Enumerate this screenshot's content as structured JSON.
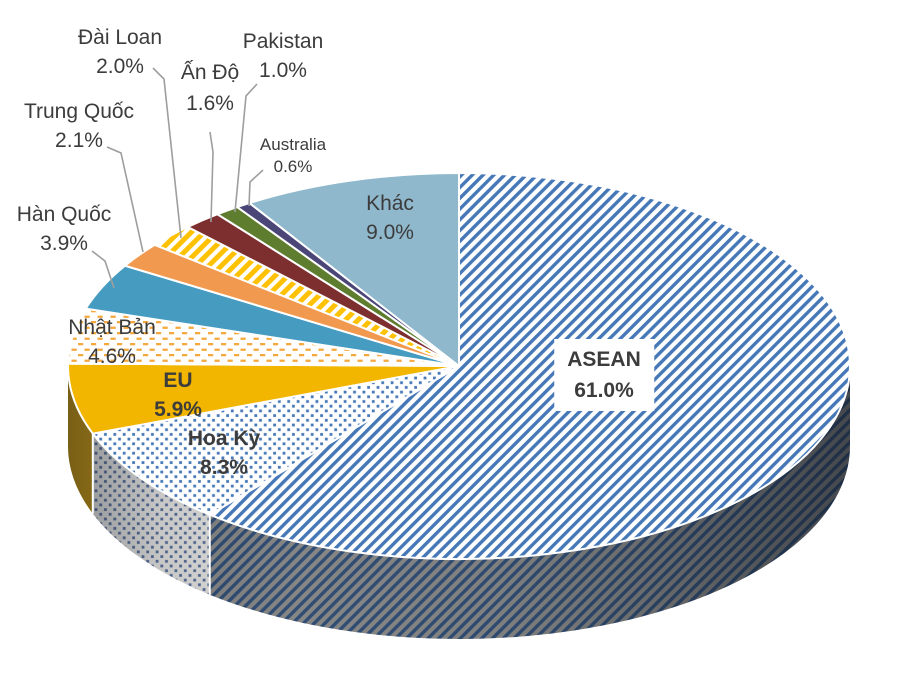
{
  "chart_data": {
    "type": "pie",
    "style": "3d",
    "title": "",
    "unit": "%",
    "legend": "none",
    "start_angle_deg": 0,
    "direction": "clockwise",
    "slices": [
      {
        "label": "ASEAN",
        "slug": "asean",
        "value": 61.0,
        "pct": "61.0%",
        "pattern": "stripe",
        "period": 7.6,
        "stripe_width": 3.4,
        "color": "#4678B8",
        "bg": "#FFFFFF",
        "wall_color": "#33517A",
        "wall_bg": "#8E8E8C"
      },
      {
        "label": "Hoa Kỳ",
        "slug": "hoa-ky",
        "value": 8.3,
        "pct": "8.3%",
        "pattern": "dot",
        "color": "#4678B8",
        "bg": "#FFFFFF",
        "wall_color": "#5C73A3",
        "wall_bg": "#F0EFEC"
      },
      {
        "label": "EU",
        "slug": "eu",
        "value": 5.9,
        "pct": "5.9%",
        "pattern": "solid",
        "color": "#F2B500",
        "wall_color": "#CD9B10"
      },
      {
        "label": "Nhật Bản",
        "slug": "nhat-ban",
        "value": 4.6,
        "pct": "4.6%",
        "pattern": "dash",
        "color": "#F3A93F",
        "bg": "#FFFFFF"
      },
      {
        "label": "Hàn Quốc",
        "slug": "han-quoc",
        "value": 3.9,
        "pct": "3.9%",
        "pattern": "solid",
        "color": "#469BC0"
      },
      {
        "label": "Trung Quốc",
        "slug": "trung-quoc",
        "value": 2.1,
        "pct": "2.1%",
        "pattern": "solid",
        "color": "#F0994F"
      },
      {
        "label": "Đài Loan",
        "slug": "dai-loan",
        "value": 2.0,
        "pct": "2.0%",
        "pattern": "stripe",
        "period": 9,
        "stripe_width": 5,
        "color": "#FFC103",
        "bg": "#FFFFFF"
      },
      {
        "label": "Ấn Độ",
        "slug": "an-do",
        "value": 1.6,
        "pct": "1.6%",
        "pattern": "solid",
        "color": "#7D2E2E"
      },
      {
        "label": "Pakistan",
        "slug": "pakistan",
        "value": 1.0,
        "pct": "1.0%",
        "pattern": "solid",
        "color": "#5E7D2F"
      },
      {
        "label": "Australia",
        "slug": "australia",
        "value": 0.6,
        "pct": "0.6%",
        "pattern": "solid",
        "color": "#4A4677"
      },
      {
        "label": "Khác",
        "slug": "khac",
        "value": 9.0,
        "pct": "9.0%",
        "pattern": "solid",
        "color": "#8FB8CC"
      }
    ],
    "colors": {
      "label_text": "#3C3C3C",
      "leader_line": "#9E9E9E",
      "slice_separator": "#FFFFFF",
      "background": "#FFFFFF"
    }
  }
}
